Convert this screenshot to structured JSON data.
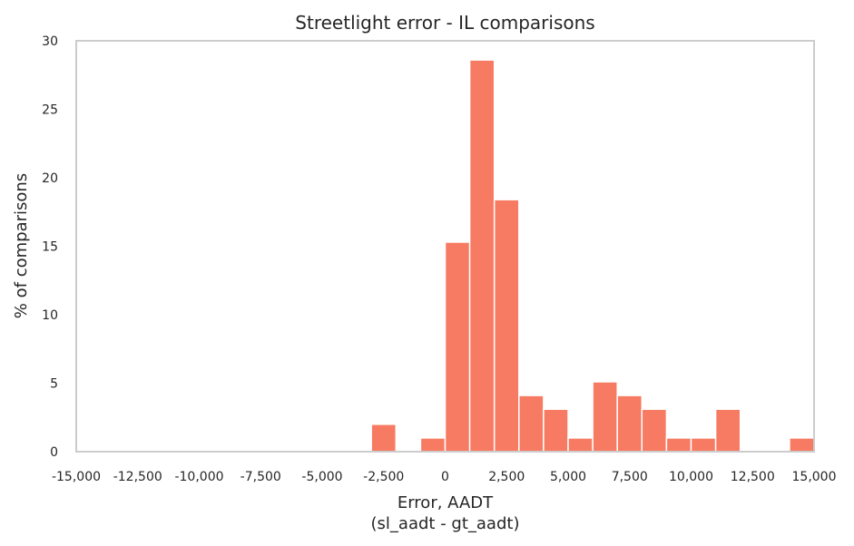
{
  "chart_data": {
    "type": "bar",
    "title": "Streetlight error - IL comparisons",
    "xlabel": "Error, AADT",
    "xlabel_sub": "(sl_aadt - gt_aadt)",
    "ylabel": "% of comparisons",
    "xlim": [
      -15000,
      15000
    ],
    "ylim": [
      0,
      30
    ],
    "grid": false,
    "bar_color": "#f77a62",
    "axis_color": "#cccccc",
    "xticks": [
      -15000,
      -12500,
      -10000,
      -7500,
      -5000,
      -2500,
      0,
      2500,
      5000,
      7500,
      10000,
      12500,
      15000
    ],
    "xtick_labels": [
      "-15,000",
      "-12,500",
      "-10,000",
      "-7,500",
      "-5,000",
      "-2,500",
      "0",
      "2,500",
      "5,000",
      "7,500",
      "10,000",
      "12,500",
      "15,000"
    ],
    "yticks": [
      0,
      5,
      10,
      15,
      20,
      25,
      30
    ],
    "ytick_labels": [
      "0",
      "5",
      "10",
      "15",
      "20",
      "25",
      "30"
    ],
    "bins": [
      {
        "start": -3000,
        "end": -2000,
        "value": 2
      },
      {
        "start": -2000,
        "end": -1000,
        "value": 0
      },
      {
        "start": -1000,
        "end": 0,
        "value": 1
      },
      {
        "start": 0,
        "end": 1000,
        "value": 15.3
      },
      {
        "start": 1000,
        "end": 2000,
        "value": 28.6
      },
      {
        "start": 2000,
        "end": 3000,
        "value": 18.4
      },
      {
        "start": 3000,
        "end": 4000,
        "value": 4.1
      },
      {
        "start": 4000,
        "end": 5000,
        "value": 3.1
      },
      {
        "start": 5000,
        "end": 6000,
        "value": 1
      },
      {
        "start": 6000,
        "end": 7000,
        "value": 5.1
      },
      {
        "start": 7000,
        "end": 8000,
        "value": 4.1
      },
      {
        "start": 8000,
        "end": 9000,
        "value": 3.1
      },
      {
        "start": 9000,
        "end": 10000,
        "value": 1
      },
      {
        "start": 10000,
        "end": 11000,
        "value": 1
      },
      {
        "start": 11000,
        "end": 12000,
        "value": 3.1
      },
      {
        "start": 12000,
        "end": 13000,
        "value": 0
      },
      {
        "start": 13000,
        "end": 14000,
        "value": 0
      },
      {
        "start": 14000,
        "end": 15000,
        "value": 1
      }
    ]
  }
}
